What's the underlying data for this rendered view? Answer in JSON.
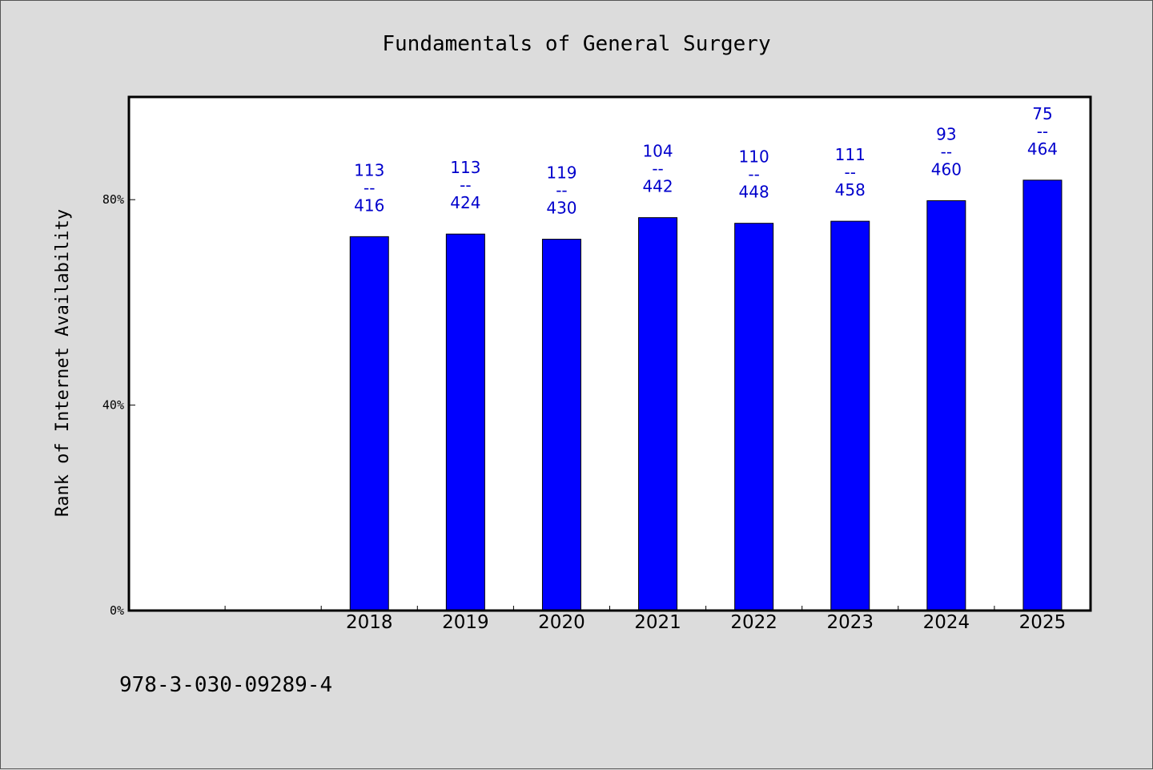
{
  "chart_data": {
    "type": "bar",
    "title": "Fundamentals of General Surgery",
    "xlabel": "",
    "ylabel": "Rank of Internet Availability",
    "categories": [
      "2018",
      "2019",
      "2020",
      "2021",
      "2022",
      "2023",
      "2024",
      "2025"
    ],
    "values": [
      72.8,
      73.3,
      72.3,
      76.5,
      75.4,
      75.8,
      79.8,
      83.8
    ],
    "data_labels": [
      {
        "top": "113",
        "sep": "--",
        "bottom": "416"
      },
      {
        "top": "113",
        "sep": "--",
        "bottom": "424"
      },
      {
        "top": "119",
        "sep": "--",
        "bottom": "430"
      },
      {
        "top": "104",
        "sep": "--",
        "bottom": "442"
      },
      {
        "top": "110",
        "sep": "--",
        "bottom": "448"
      },
      {
        "top": "111",
        "sep": "--",
        "bottom": "458"
      },
      {
        "top": "93",
        "sep": "--",
        "bottom": "460"
      },
      {
        "top": "75",
        "sep": "--",
        "bottom": "464"
      }
    ],
    "ylim": [
      0,
      100
    ],
    "yticks": [
      {
        "value": 0,
        "label": "0%"
      },
      {
        "value": 40,
        "label": "40%"
      },
      {
        "value": 80,
        "label": "80%"
      }
    ],
    "x_slots": 10,
    "first_category_slot": 2,
    "grid": false,
    "colors": {
      "bar": "#0000ff",
      "label": "#0000cc",
      "background": "#dcdcdc",
      "plot": "#ffffff"
    }
  },
  "footer": {
    "isbn": "978-3-030-09289-4"
  }
}
